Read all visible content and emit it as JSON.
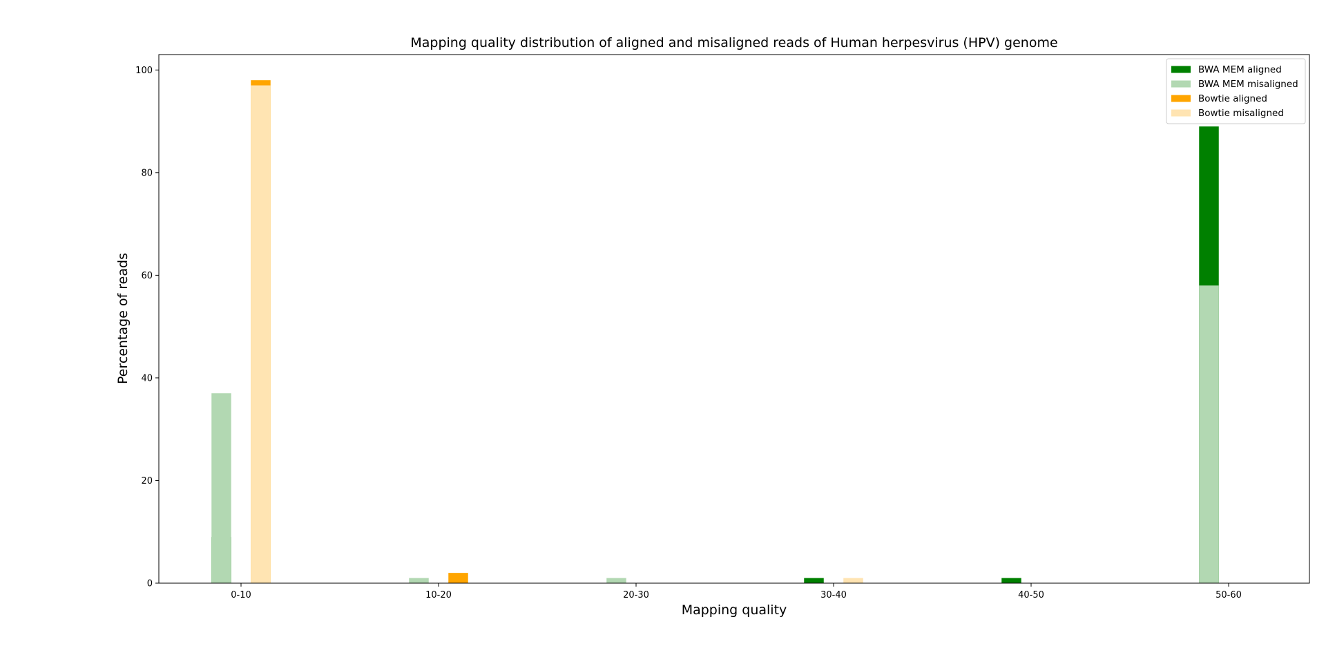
{
  "chart_data": {
    "type": "bar",
    "title": "Mapping quality distribution of aligned and misaligned reads of Human herpesvirus (HPV) genome",
    "xlabel": "Mapping quality",
    "ylabel": "Percentage of reads",
    "categories": [
      "0-10",
      "10-20",
      "20-30",
      "30-40",
      "40-50",
      "50-60"
    ],
    "ylim": [
      0,
      103
    ],
    "yticks": [
      0,
      20,
      40,
      60,
      80,
      100
    ],
    "grid": false,
    "legend_position": "top-right",
    "groups": [
      {
        "name": "BWA MEM",
        "series": [
          {
            "name": "BWA MEM aligned",
            "color": "#008000",
            "values": [
              9,
              0,
              0,
              1,
              1,
              89
            ]
          },
          {
            "name": "BWA MEM misaligned",
            "color": "#b2d8b2",
            "values": [
              37,
              1,
              1,
              0,
              0,
              58
            ]
          }
        ]
      },
      {
        "name": "Bowtie",
        "series": [
          {
            "name": "Bowtie aligned",
            "color": "#ffa500",
            "values": [
              98,
              2,
              0,
              0,
              0,
              0
            ]
          },
          {
            "name": "Bowtie misaligned",
            "color": "#ffe4b2",
            "values": [
              97,
              0,
              0,
              1,
              0,
              0
            ]
          }
        ]
      }
    ],
    "draw_order_note": "aligned drawn first, misaligned overlaid",
    "legend": [
      "BWA MEM aligned",
      "BWA MEM misaligned",
      "Bowtie aligned",
      "Bowtie misaligned"
    ]
  }
}
